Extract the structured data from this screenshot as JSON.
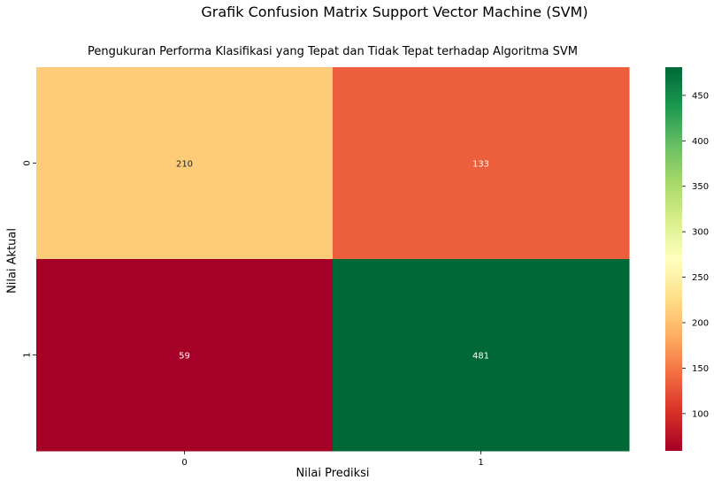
{
  "figure": {
    "suptitle": "Grafik Confusion Matrix Support Vector Machine (SVM)"
  },
  "chart_data": {
    "type": "heatmap",
    "title": "Pengukuran Performa Klasifikasi yang Tepat dan Tidak Tepat terhadap Algoritma SVM",
    "xlabel": "Nilai Prediksi",
    "ylabel": "Nilai Aktual",
    "x_categories": [
      "0",
      "1"
    ],
    "y_categories": [
      "0",
      "1"
    ],
    "values": [
      [
        210,
        133
      ],
      [
        59,
        481
      ]
    ],
    "colormap": "RdYlGn",
    "colorbar": {
      "min": 59,
      "max": 481,
      "ticks": [
        100,
        150,
        200,
        250,
        300,
        350,
        400,
        450
      ]
    },
    "grid": false,
    "legend": "none"
  }
}
